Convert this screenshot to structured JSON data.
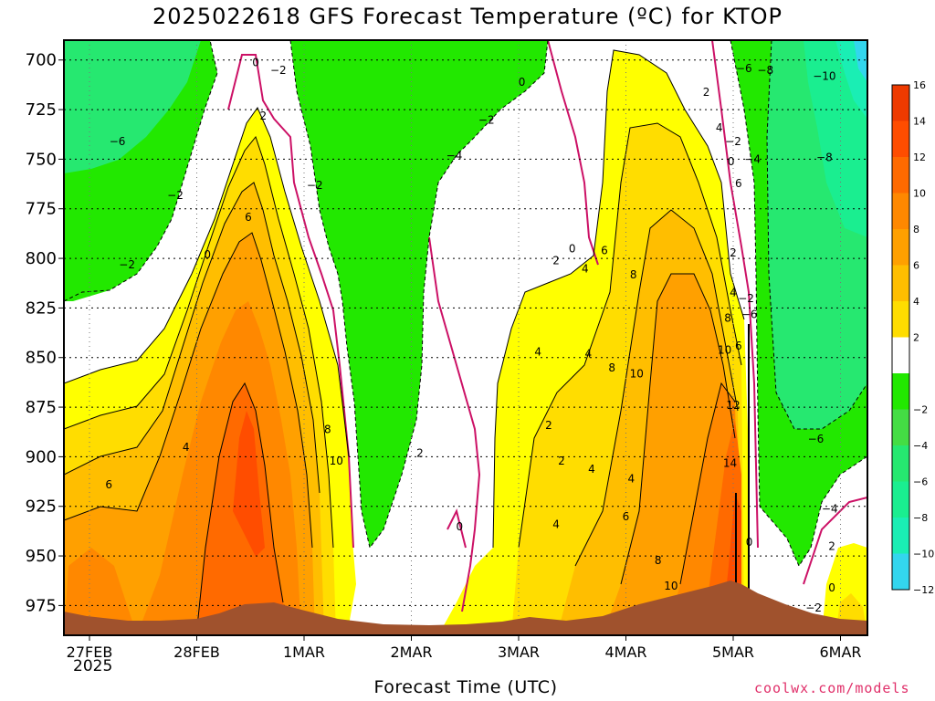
{
  "title": "2025022618 GFS Forecast Temperature (ºC) for KTOP",
  "xlabel": "Forecast Time (UTC)",
  "credit": "coolwx.com/models",
  "year_label": "2025",
  "colors": {
    "-12": "#33d6ee",
    "-10": "#1aeeb4",
    "-8": "#1aee90",
    "-6": "#26e870",
    "-4": "#44dd44",
    "-2": "#22e800",
    "0": "#ffffff",
    "2": "#ffff00",
    "4": "#ffdd00",
    "6": "#ffbe00",
    "8": "#ffa000",
    "10": "#ff8800",
    "12": "#ff6a00",
    "14": "#ff4d00",
    "16": "#ee3a00",
    "terrain": "#a0522d",
    "freezing_line": "#cc1166"
  },
  "chart_data": {
    "type": "heatmap",
    "title": "2025022618 GFS Forecast Temperature (ºC) for KTOP",
    "xlabel": "Forecast Time (UTC)",
    "ylabel": "",
    "x_ticks": [
      "27FEB",
      "28FEB",
      "1MAR",
      "2MAR",
      "3MAR",
      "4MAR",
      "5MAR",
      "6MAR"
    ],
    "y_ticks": [
      700,
      725,
      750,
      775,
      800,
      825,
      850,
      875,
      900,
      925,
      950,
      975
    ],
    "ylim": [
      990,
      690
    ],
    "grid": true,
    "colorbar": {
      "position": "right",
      "ticks": [
        16,
        14,
        12,
        10,
        8,
        6,
        4,
        2,
        -2,
        -4,
        -6,
        -8,
        -10,
        -12
      ],
      "levels": [
        -12,
        -10,
        -8,
        -6,
        -4,
        -2,
        0,
        2,
        4,
        6,
        8,
        10,
        12,
        14,
        16
      ]
    },
    "contour_labels": [
      {
        "day": 1.55,
        "p": 703,
        "label": "0"
      },
      {
        "day": 1.76,
        "p": 707,
        "label": "-2"
      },
      {
        "day": 1.62,
        "p": 730,
        "label": "2"
      },
      {
        "day": 0.26,
        "p": 743,
        "label": "-6"
      },
      {
        "day": 0.8,
        "p": 770,
        "label": "-2"
      },
      {
        "day": 1.48,
        "p": 781,
        "label": "6"
      },
      {
        "day": 1.1,
        "p": 800,
        "label": "0"
      },
      {
        "day": 0.35,
        "p": 805,
        "label": "-2"
      },
      {
        "day": 2.1,
        "p": 765,
        "label": "-2"
      },
      {
        "day": 3.4,
        "p": 750,
        "label": "-4"
      },
      {
        "day": 3.7,
        "p": 732,
        "label": "-2"
      },
      {
        "day": 4.03,
        "p": 713,
        "label": "0"
      },
      {
        "day": 4.5,
        "p": 797,
        "label": "0"
      },
      {
        "day": 4.35,
        "p": 803,
        "label": "2"
      },
      {
        "day": 4.62,
        "p": 807,
        "label": "4"
      },
      {
        "day": 4.8,
        "p": 798,
        "label": "6"
      },
      {
        "day": 5.07,
        "p": 810,
        "label": "8"
      },
      {
        "day": 5.75,
        "p": 718,
        "label": "2"
      },
      {
        "day": 5.87,
        "p": 736,
        "label": "4"
      },
      {
        "day": 6.05,
        "p": 764,
        "label": "6"
      },
      {
        "day": 6.0,
        "p": 743,
        "label": "-2"
      },
      {
        "day": 5.98,
        "p": 753,
        "label": "0"
      },
      {
        "day": 6.18,
        "p": 752,
        "label": "-4"
      },
      {
        "day": 6.1,
        "p": 706,
        "label": "-6"
      },
      {
        "day": 6.3,
        "p": 707,
        "label": "-8"
      },
      {
        "day": 6.85,
        "p": 710,
        "label": "-10"
      },
      {
        "day": 6.85,
        "p": 751,
        "label": "-8"
      },
      {
        "day": 6.15,
        "p": 830,
        "label": "-6"
      },
      {
        "day": 6.77,
        "p": 893,
        "label": "-6"
      },
      {
        "day": 6.9,
        "p": 928,
        "label": "-4"
      },
      {
        "day": 6.0,
        "p": 799,
        "label": "2"
      },
      {
        "day": 6.0,
        "p": 819,
        "label": "4"
      },
      {
        "day": 5.95,
        "p": 832,
        "label": "8"
      },
      {
        "day": 6.12,
        "p": 822,
        "label": "-2"
      },
      {
        "day": 5.92,
        "p": 848,
        "label": "10"
      },
      {
        "day": 6.05,
        "p": 846,
        "label": "6"
      },
      {
        "day": 4.18,
        "p": 849,
        "label": "4"
      },
      {
        "day": 3.08,
        "p": 900,
        "label": "2"
      },
      {
        "day": 4.65,
        "p": 850,
        "label": "4"
      },
      {
        "day": 4.87,
        "p": 857,
        "label": "8"
      },
      {
        "day": 5.1,
        "p": 860,
        "label": "10"
      },
      {
        "day": 5.05,
        "p": 913,
        "label": "4"
      },
      {
        "day": 4.28,
        "p": 886,
        "label": "2"
      },
      {
        "day": 4.4,
        "p": 904,
        "label": "2"
      },
      {
        "day": 4.68,
        "p": 908,
        "label": "4"
      },
      {
        "day": 5.0,
        "p": 932,
        "label": "6"
      },
      {
        "day": 4.35,
        "p": 936,
        "label": "4"
      },
      {
        "day": 3.45,
        "p": 937,
        "label": "0"
      },
      {
        "day": 5.3,
        "p": 954,
        "label": "8"
      },
      {
        "day": 5.42,
        "p": 967,
        "label": "10"
      },
      {
        "day": 6.0,
        "p": 876,
        "label": "12"
      },
      {
        "day": 5.97,
        "p": 905,
        "label": "14"
      },
      {
        "day": 6.15,
        "p": 945,
        "label": "0"
      },
      {
        "day": 6.92,
        "p": 947,
        "label": "2"
      },
      {
        "day": 6.92,
        "p": 968,
        "label": "0"
      },
      {
        "day": 6.75,
        "p": 978,
        "label": "-2"
      },
      {
        "day": 0.18,
        "p": 916,
        "label": "6"
      },
      {
        "day": 0.9,
        "p": 897,
        "label": "4"
      },
      {
        "day": 2.22,
        "p": 888,
        "label": "8"
      },
      {
        "day": 2.3,
        "p": 904,
        "label": "10"
      }
    ]
  }
}
